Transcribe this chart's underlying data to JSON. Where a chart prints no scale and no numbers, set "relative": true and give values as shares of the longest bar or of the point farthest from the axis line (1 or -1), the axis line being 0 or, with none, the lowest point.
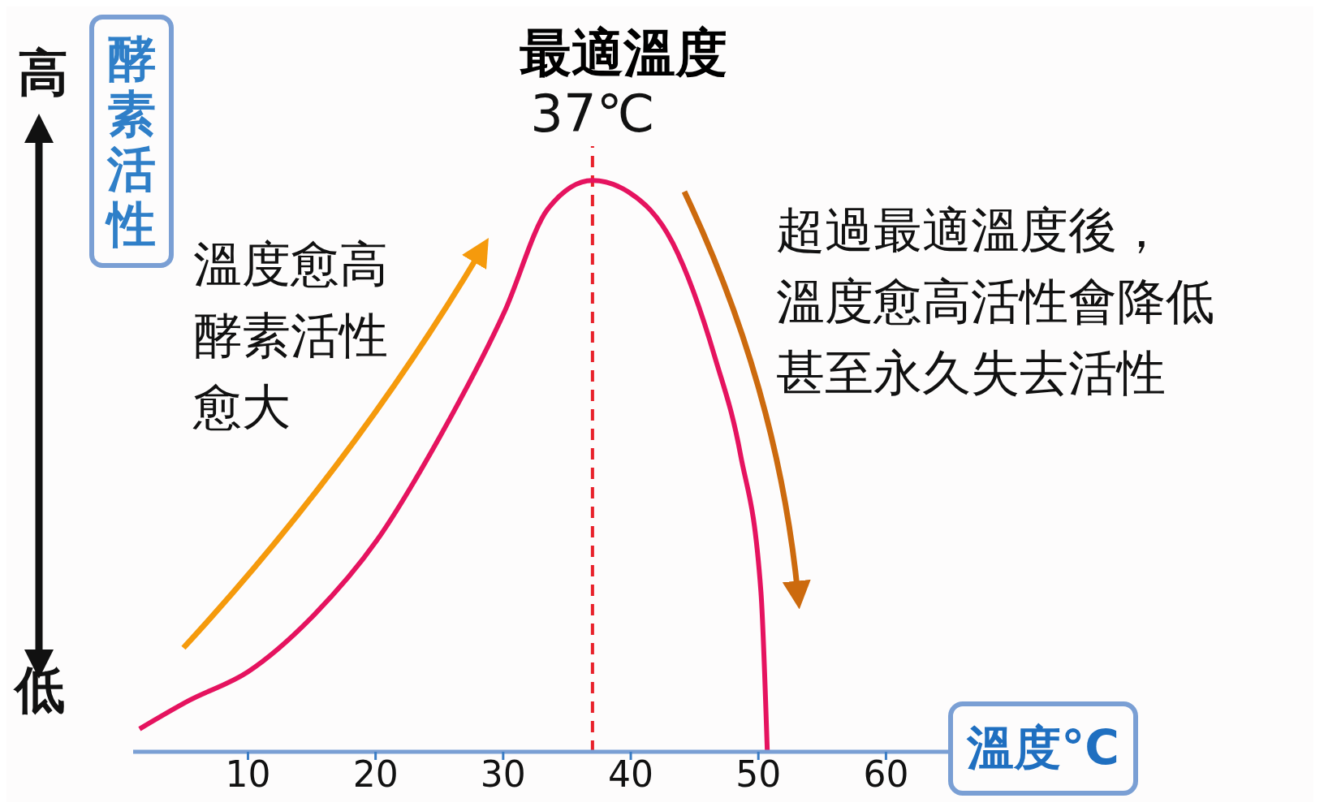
{
  "chart_data": {
    "type": "line",
    "title": "最適溫度",
    "xlabel": "溫度°C",
    "ylabel": "酵素活性",
    "relative": true,
    "x": [
      1.5,
      5.4,
      10,
      15.2,
      20.1,
      25,
      30.1,
      33.5,
      37,
      39.8,
      43.3,
      46.6,
      48.6,
      50.2,
      50.7
    ],
    "series": [
      {
        "color": "#e5135f",
        "values": [
          0.04,
          0.09,
          0.14,
          0.24,
          0.37,
          0.55,
          0.77,
          0.95,
          1,
          0.98,
          0.89,
          0.69,
          0.52,
          0.28,
          0
        ]
      }
    ],
    "xlim": [
      1,
      65
    ],
    "xticks": [
      10,
      20,
      30,
      40,
      50,
      60
    ],
    "grid": false,
    "legend": false,
    "marker": "none",
    "line_style": "solid",
    "ref_lines": [
      {
        "axis": "x",
        "value": 37,
        "label": "37℃",
        "color": "#e8202a",
        "line_style": "dashed"
      }
    ],
    "annotations": [
      "高",
      "低",
      "溫度愈高",
      "酵素活性",
      "愈大",
      "超過最適溫度後，",
      "溫度愈高活性會降低",
      "甚至永久失去活性"
    ]
  }
}
